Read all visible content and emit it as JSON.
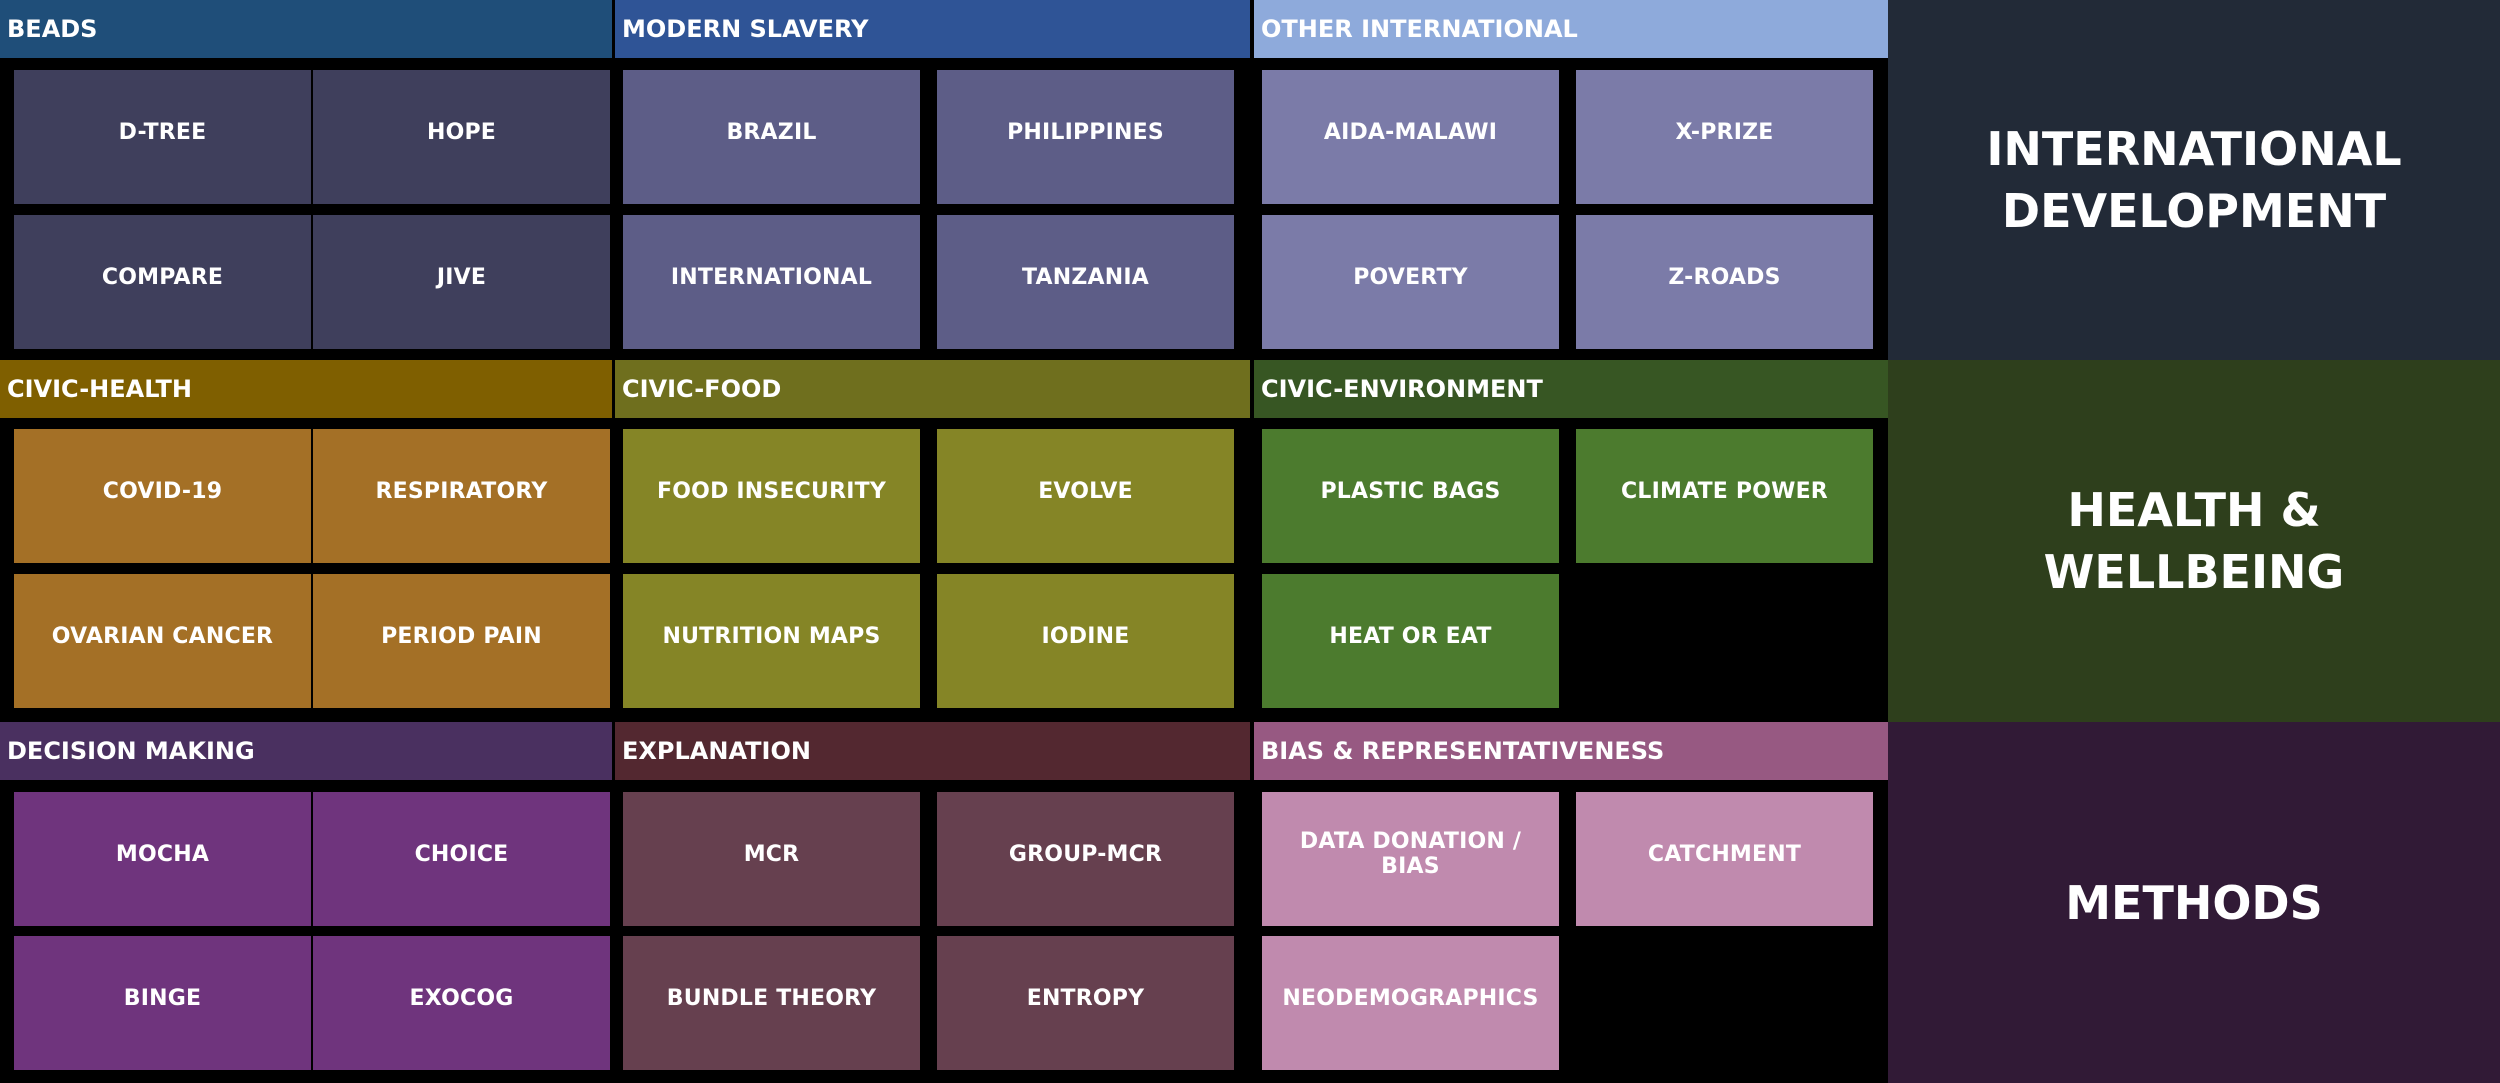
{
  "rows": [
    {
      "theme": {
        "label_line1": "INTERNATIONAL",
        "label_line2": "DEVELOPMENT",
        "color": "#222a37"
      },
      "groups": [
        {
          "title": "BEADS",
          "header_color": "#1f4e79",
          "tile_color": "#3f3f5c",
          "items": [
            "D-TREE",
            "HOPE",
            "COMPARE",
            "JIVE"
          ]
        },
        {
          "title": "MODERN SLAVERY",
          "header_color": "#2f5496",
          "tile_color": "#5d5d87",
          "items": [
            "BRAZIL",
            "PHILIPPINES",
            "INTERNATIONAL",
            "TANZANIA"
          ]
        },
        {
          "title": "OTHER INTERNATIONAL",
          "header_color": "#8eaadb",
          "tile_color": "#7b7ba8",
          "items": [
            "AIDA-MALAWI",
            "X-PRIZE",
            "POVERTY",
            "Z-ROADS"
          ]
        }
      ]
    },
    {
      "theme": {
        "label": "HEALTH & WELLBEING",
        "color": "#2e3f1c"
      },
      "groups": [
        {
          "title": "CIVIC-HEALTH",
          "header_color": "#7f5f00",
          "tile_color": "#a47026",
          "items": [
            "COVID-19",
            "RESPIRATORY",
            "OVARIAN CANCER",
            "PERIOD PAIN"
          ]
        },
        {
          "title": "CIVIC-FOOD",
          "header_color": "#6f6f1e",
          "tile_color": "#858526",
          "items": [
            "FOOD INSECURITY",
            "EVOLVE",
            "NUTRITION MAPS",
            "IODINE"
          ]
        },
        {
          "title": "CIVIC-ENVIRONMENT",
          "header_color": "#375623",
          "tile_color": "#4c7b2e",
          "items": [
            "PLASTIC BAGS",
            "CLIMATE POWER",
            "HEAT OR EAT"
          ]
        }
      ]
    },
    {
      "theme": {
        "label": "METHODS",
        "color": "#311a36"
      },
      "groups": [
        {
          "title": "DECISION MAKING",
          "header_color": "#4a3060",
          "tile_color": "#6f347d",
          "items": [
            "MOCHA",
            "CHOICE",
            "BINGE",
            "EXOCOG"
          ]
        },
        {
          "title": "EXPLANATION",
          "header_color": "#532830",
          "tile_color": "#66404f",
          "items": [
            "MCR",
            "GROUP-MCR",
            "BUNDLE THEORY",
            "ENTROPY"
          ]
        },
        {
          "title": "BIAS & REPRESENTATIVENESS",
          "header_color": "#975982",
          "tile_color": "#c08aae",
          "items": [
            "DATA DONATION / BIAS",
            "CATCHMENT",
            "NEODEMOGRAPHICS"
          ]
        }
      ]
    }
  ]
}
